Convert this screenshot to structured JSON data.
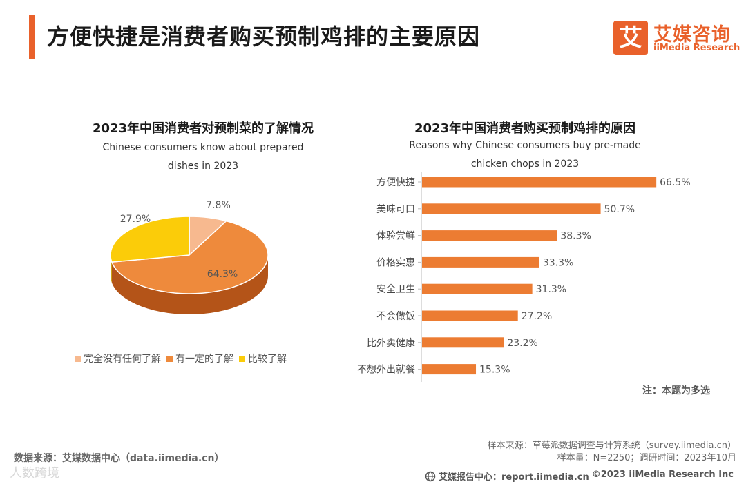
{
  "header": {
    "title": "方便快捷是消费者购买预制鸡排的主要原因"
  },
  "logo": {
    "mark": "艾",
    "name_cn": "艾媒咨询",
    "name_en": "iiMedia Research"
  },
  "colors": {
    "accent": "#e9612b",
    "pie_light": "#f7b98f",
    "pie_orange": "#ee8a3c",
    "pie_yellow": "#fbcc09",
    "bar": "#ec7c32"
  },
  "chart_data": [
    {
      "type": "pie",
      "title": "2023年中国消费者对预制菜的了解情况",
      "subtitle_lines": [
        "Chinese consumers know about prepared",
        "dishes in 2023"
      ],
      "categories": [
        "完全没有任何了解",
        "有一定的了解",
        "比较了解"
      ],
      "values": [
        7.8,
        64.3,
        27.9
      ],
      "value_labels": [
        "7.8%",
        "64.3%",
        "27.9%"
      ],
      "legend_position": "bottom"
    },
    {
      "type": "bar",
      "orientation": "horizontal",
      "title": "2023年中国消费者购买预制鸡排的原因",
      "subtitle_lines": [
        "Reasons why Chinese consumers buy pre-made",
        "chicken chops in 2023"
      ],
      "categories": [
        "方便快捷",
        "美味可口",
        "体验尝鲜",
        "价格实惠",
        "安全卫生",
        "不会做饭",
        "比外卖健康",
        "不想外出就餐"
      ],
      "values": [
        66.5,
        50.7,
        38.3,
        33.3,
        31.3,
        27.2,
        23.2,
        15.3
      ],
      "value_labels": [
        "66.5%",
        "50.7%",
        "38.3%",
        "33.3%",
        "31.3%",
        "27.2%",
        "23.2%",
        "15.3%"
      ],
      "xlim": [
        0,
        70
      ]
    }
  ],
  "note": "注：本题为多选",
  "source": {
    "left": "数据来源：艾媒数据中心（data.iimedia.cn）",
    "sample_source": "样本来源：草莓派数据调查与计算系统（survey.iimedia.cn）",
    "sample_size": "样本量：N=2250；调研时间：2023年10月"
  },
  "footer": {
    "report_center": "艾媒报告中心：report.iimedia.cn",
    "copyright": "©2023  iiMedia Research  Inc"
  },
  "watermark": "人数跨境"
}
